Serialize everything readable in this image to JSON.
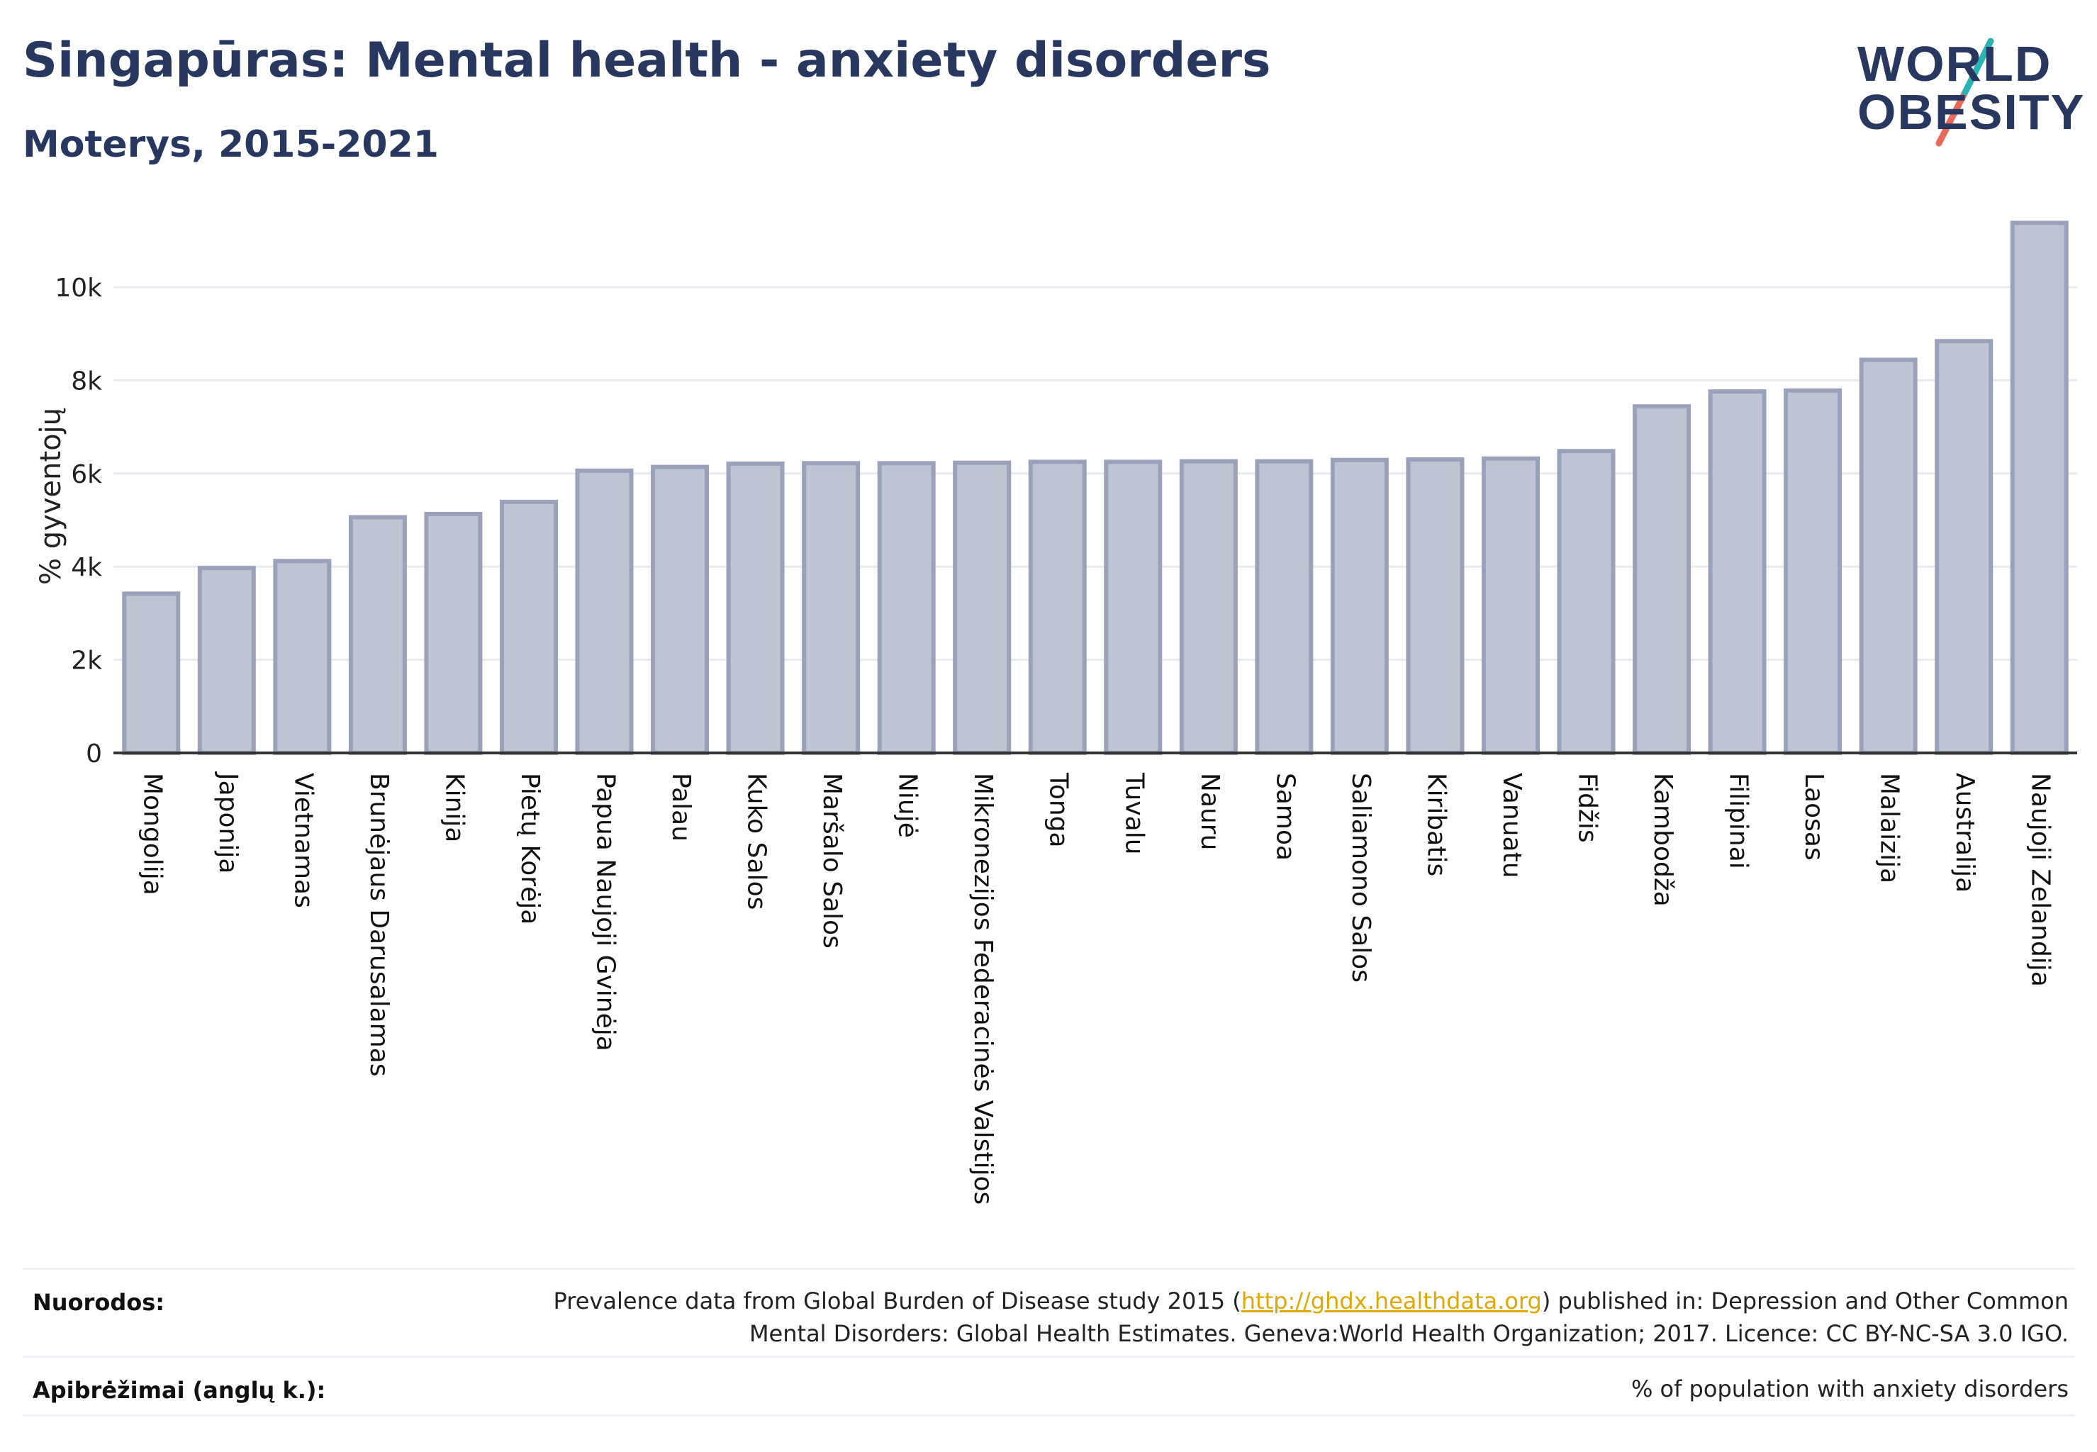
{
  "header": {
    "title": "Singapūras: Mental health - anxiety disorders",
    "subtitle": "Moterys, 2015-2021"
  },
  "logo": {
    "line1": "WORLD",
    "line2": "OBESITY"
  },
  "colors": {
    "bar_fill": "#bfc4d2",
    "bar_stroke": "#9aa1ba",
    "text": "#283760",
    "link": "#e0a800",
    "logo_teal": "#2ab3b3",
    "logo_coral": "#e8685a"
  },
  "chart_data": {
    "type": "bar",
    "title": "Singapūras: Mental health - anxiety disorders",
    "subtitle": "Moterys, 2015-2021",
    "ylabel": "% gyventojų",
    "xlabel": "",
    "ylim": [
      0,
      11500
    ],
    "yticks": [
      0,
      2000,
      4000,
      6000,
      8000,
      10000
    ],
    "ytick_labels": [
      "0",
      "2k",
      "4k",
      "6k",
      "8k",
      "10k"
    ],
    "grid": true,
    "categories": [
      "Mongolija",
      "Japonija",
      "Vietnamas",
      "Brunėjaus Darusalamas",
      "Kinija",
      "Pietų Korėja",
      "Papua Naujoji Gvinėja",
      "Palau",
      "Kuko Salos",
      "Maršalo Salos",
      "Niujė",
      "Mikronezijos Federacinės Valstijos",
      "Tonga",
      "Tuvalu",
      "Nauru",
      "Samoa",
      "Saliamono Salos",
      "Kiribatis",
      "Vanuatu",
      "Fidžis",
      "Kambodža",
      "Filipinai",
      "Laosas",
      "Malaizija",
      "Australija",
      "Naujoji Zelandija"
    ],
    "values": [
      3420,
      3970,
      4120,
      5060,
      5130,
      5390,
      6060,
      6140,
      6210,
      6220,
      6220,
      6230,
      6250,
      6250,
      6260,
      6260,
      6290,
      6300,
      6320,
      6480,
      7440,
      7760,
      7780,
      8440,
      8840,
      11380
    ]
  },
  "footer": {
    "sources_label": "Nuorodos:",
    "sources_line1_before": "Prevalence data from Global Burden of Disease study 2015 (",
    "sources_link": "http://ghdx.healthdata.org",
    "sources_line1_after": ") published in: Depression and Other Common",
    "sources_line2": "Mental Disorders: Global Health Estimates. Geneva:World Health Organization; 2017. Licence: CC BY-NC-SA 3.0 IGO.",
    "definitions_label": "Apibrėžimai (anglų k.):",
    "definitions_text": "% of population with anxiety disorders"
  }
}
